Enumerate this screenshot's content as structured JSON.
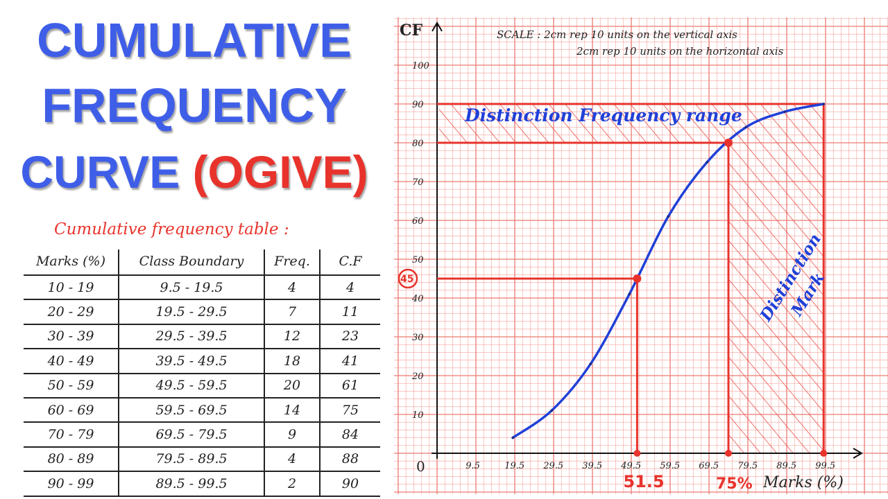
{
  "title": {
    "line1": "CUMULATIVE",
    "line2": "FREQUENCY",
    "line3_main": "CURVE",
    "line3_accent": "(OGIVE)"
  },
  "table": {
    "heading": "Cumulative frequency table :",
    "columns": [
      "Marks (%)",
      "Class Boundary",
      "Freq.",
      "C.F"
    ],
    "rows": [
      [
        "10 - 19",
        "9.5 - 19.5",
        "4",
        "4"
      ],
      [
        "20 - 29",
        "19.5 - 29.5",
        "7",
        "11"
      ],
      [
        "30 - 39",
        "29.5 - 39.5",
        "12",
        "23"
      ],
      [
        "40 - 49",
        "39.5 - 49.5",
        "18",
        "41"
      ],
      [
        "50 - 59",
        "49.5 - 59.5",
        "20",
        "61"
      ],
      [
        "60 - 69",
        "59.5 - 69.5",
        "14",
        "75"
      ],
      [
        "70 - 79",
        "69.5 - 79.5",
        "9",
        "84"
      ],
      [
        "80 - 89",
        "79.5 - 89.5",
        "4",
        "88"
      ],
      [
        "90 - 99",
        "89.5 - 99.5",
        "2",
        "90"
      ]
    ]
  },
  "colors": {
    "title_blue": "#3f5ee8",
    "accent_red": "#e8332c",
    "curve_blue": "#2040d8",
    "grid_red": "#f4a09a"
  },
  "chart_data": {
    "type": "line",
    "ylabel": "CF",
    "xlabel": "Marks (%)",
    "scale_note": [
      "SCALE : 2cm rep 10 units on the vertical axis",
      "2cm rep 10 units on the horizontal axis"
    ],
    "x_ticks": [
      "9.5",
      "19.5",
      "29.5",
      "39.5",
      "49.5",
      "59.5",
      "69.5",
      "79.5",
      "89.5",
      "99.5"
    ],
    "y_ticks": [
      "10",
      "20",
      "30",
      "40",
      "50",
      "60",
      "70",
      "80",
      "90",
      "100"
    ],
    "origin_label": "0",
    "xlim": [
      0,
      100
    ],
    "ylim": [
      0,
      100
    ],
    "grid": true,
    "series": [
      {
        "x": [
          19.5,
          29.5,
          39.5,
          49.5,
          59.5,
          69.5,
          79.5,
          89.5,
          99.5
        ],
        "y": [
          4,
          11,
          23,
          41,
          61,
          75,
          84,
          88,
          90
        ]
      }
    ],
    "reference_lines": [
      {
        "type": "horizontal",
        "y": 90
      },
      {
        "type": "horizontal",
        "y": 80
      },
      {
        "type": "horizontal",
        "y": 45
      },
      {
        "type": "vertical",
        "x": 51.5
      },
      {
        "type": "vertical",
        "x": 75
      },
      {
        "type": "vertical",
        "x": 99.5
      }
    ],
    "annotations": {
      "y_marker": "45",
      "x_marker_1": "51.5",
      "x_marker_2": "75%",
      "band_label": "Distinction Frequency range",
      "region_label_1": "Distinction",
      "region_label_2": "Mark"
    }
  }
}
